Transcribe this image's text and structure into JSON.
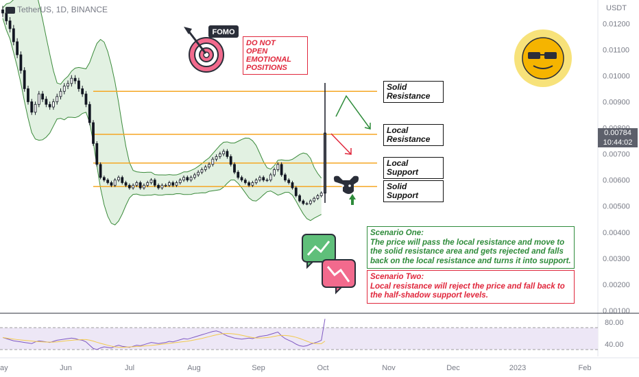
{
  "header": {
    "symbol": "TetherUS, 1D, BINANCE",
    "currency": "USDT"
  },
  "price_tag": {
    "price": "0.00784",
    "countdown": "10:44:02"
  },
  "notes": {
    "fomo_badge": "FOMO",
    "fomo_lines": [
      "DO NOT",
      "OPEN",
      "EMOTIONAL",
      "POSITIONS"
    ],
    "scenario_one_title": "Scenario One:",
    "scenario_one_text": "The price will pass the local resistance and move to the solid resistance area and gets rejected and falls back on the local resistance and turns it into support.",
    "scenario_two_title": "Scenario Two:",
    "scenario_two_text": "Local resistance will reject the price and fall back to the half-shadow support levels."
  },
  "levels": {
    "solid_resistance": {
      "label_1": "Solid",
      "label_2": "Resistance",
      "value": 0.0094
    },
    "local_resistance": {
      "label_1": "Local",
      "label_2": "Resistance",
      "value": 0.00775
    },
    "local_support": {
      "label": "Local Support",
      "value": 0.00665
    },
    "solid_support": {
      "label": "Solid Support",
      "value": 0.00575
    }
  },
  "colors": {
    "level_line": "#f5a623",
    "bollinger_fill": "#cfe8cf",
    "bollinger_line": "#3a8a3a",
    "candle": "#131722",
    "rsi_line": "#7e57c2",
    "rsi_ma": "#f2c94c",
    "rsi_band": "#ede7f6",
    "green_arrow": "#2e8b3a",
    "red_arrow": "#e0263b"
  },
  "chart_data": {
    "type": "line",
    "ylim": [
      0.001,
      0.0129
    ],
    "y_ticks": [
      "0.01200",
      "0.01100",
      "0.01000",
      "0.00900",
      "0.00800",
      "0.00700",
      "0.00600",
      "0.00500",
      "0.00400",
      "0.00300",
      "0.00200",
      "0.00100"
    ],
    "x_ticks": [
      "ay",
      "Jun",
      "Jul",
      "Aug",
      "Sep",
      "Oct",
      "Nov",
      "Dec",
      "2023",
      "Feb"
    ],
    "close": [
      0.0124,
      0.0121,
      0.0118,
      0.0113,
      0.0108,
      0.0102,
      0.0095,
      0.009,
      0.0086,
      0.0089,
      0.0093,
      0.0091,
      0.0089,
      0.0088,
      0.009,
      0.0092,
      0.0094,
      0.0096,
      0.0097,
      0.0099,
      0.0098,
      0.0095,
      0.0093,
      0.0089,
      0.0082,
      0.0074,
      0.0066,
      0.0061,
      0.006,
      0.0059,
      0.0058,
      0.006,
      0.0061,
      0.0059,
      0.0058,
      0.0057,
      0.0058,
      0.0059,
      0.0057,
      0.0058,
      0.0059,
      0.006,
      0.0058,
      0.0057,
      0.0058,
      0.0058,
      0.0059,
      0.0058,
      0.0059,
      0.006,
      0.0061,
      0.006,
      0.0061,
      0.0062,
      0.0063,
      0.0064,
      0.0065,
      0.0066,
      0.0068,
      0.0069,
      0.007,
      0.0071,
      0.0069,
      0.0066,
      0.0063,
      0.0061,
      0.006,
      0.0059,
      0.0058,
      0.0059,
      0.006,
      0.0061,
      0.006,
      0.006,
      0.0062,
      0.0064,
      0.0066,
      0.0062,
      0.006,
      0.0059,
      0.0057,
      0.0054,
      0.0052,
      0.0051,
      0.0051,
      0.0052,
      0.0053,
      0.0054,
      0.0055,
      0.0078
    ],
    "rsi_ticks": [
      "80.00",
      "40.00"
    ],
    "rsi": [
      52,
      50,
      48,
      46,
      45,
      44,
      43,
      42,
      41,
      44,
      46,
      45,
      44,
      43,
      45,
      47,
      48,
      49,
      50,
      51,
      50,
      48,
      47,
      44,
      38,
      32,
      30,
      33,
      35,
      34,
      33,
      36,
      38,
      36,
      35,
      34,
      36,
      38,
      37,
      39,
      41,
      43,
      42,
      41,
      42,
      43,
      45,
      44,
      46,
      48,
      50,
      49,
      51,
      53,
      55,
      57,
      59,
      61,
      63,
      64,
      62,
      58,
      55,
      53,
      51,
      50,
      49,
      50,
      51,
      50,
      52,
      54,
      55,
      56,
      58,
      60,
      62,
      55,
      50,
      47,
      44,
      40,
      37,
      36,
      37,
      40,
      42,
      44,
      47,
      86
    ]
  }
}
